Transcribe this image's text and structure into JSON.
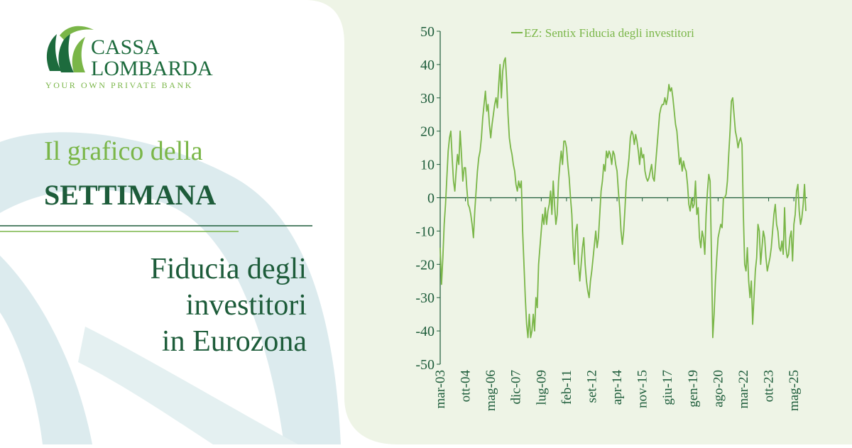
{
  "brand": {
    "name_1": "CASSA",
    "name_2": "LOMBARDA",
    "tagline": "YOUR OWN PRIVATE BANK"
  },
  "panel": {
    "kicker": "Il grafico della",
    "kicker_strong": "SETTIMANA",
    "headline": [
      "Fiducia degli",
      "investitori",
      "in Eurozona"
    ]
  },
  "chart_data": {
    "type": "line",
    "legend": "top",
    "categories": [
      "mar-03",
      null,
      null,
      null,
      null,
      null,
      null,
      null,
      null,
      null,
      null,
      null,
      null,
      null,
      null,
      null,
      null,
      null,
      null,
      "ott-04",
      null,
      null,
      null,
      null,
      null,
      null,
      null,
      null,
      null,
      null,
      null,
      null,
      null,
      null,
      null,
      null,
      null,
      null,
      "mag-06",
      null,
      null,
      null,
      null,
      null,
      null,
      null,
      null,
      null,
      null,
      null,
      null,
      null,
      null,
      null,
      null,
      null,
      null,
      "dic-07",
      null,
      null,
      null,
      null,
      null,
      null,
      null,
      null,
      null,
      null,
      null,
      null,
      null,
      null,
      null,
      null,
      null,
      null,
      "lug-09",
      null,
      null,
      null,
      null,
      null,
      null,
      null,
      null,
      null,
      null,
      null,
      null,
      null,
      null,
      null,
      null,
      null,
      null,
      "feb-11",
      null,
      null,
      null,
      null,
      null,
      null,
      null,
      null,
      null,
      null,
      null,
      null,
      null,
      null,
      null,
      null,
      null,
      null,
      "set-12",
      null,
      null,
      null,
      null,
      null,
      null,
      null,
      null,
      null,
      null,
      null,
      null,
      null,
      null,
      null,
      null,
      null,
      null,
      "apr-14",
      null,
      null,
      null,
      null,
      null,
      null,
      null,
      null,
      null,
      null,
      null,
      null,
      null,
      null,
      null,
      null,
      null,
      null,
      "nov-15",
      null,
      null,
      null,
      null,
      null,
      null,
      null,
      null,
      null,
      null,
      null,
      null,
      null,
      null,
      null,
      null,
      null,
      null,
      "giu-17",
      null,
      null,
      null,
      null,
      null,
      null,
      null,
      null,
      null,
      null,
      null,
      null,
      null,
      null,
      null,
      null,
      null,
      null,
      "gen-19",
      null,
      null,
      null,
      null,
      null,
      null,
      null,
      null,
      null,
      null,
      null,
      null,
      null,
      null,
      null,
      null,
      null,
      null,
      "ago-20",
      null,
      null,
      null,
      null,
      null,
      null,
      null,
      null,
      null,
      null,
      null,
      null,
      null,
      null,
      null,
      null,
      null,
      null,
      "mar-22",
      null,
      null,
      null,
      null,
      null,
      null,
      null,
      null,
      null,
      null,
      null,
      null,
      null,
      null,
      null,
      null,
      null,
      null,
      "ott-23",
      null,
      null,
      null,
      null,
      null,
      null,
      null,
      null,
      null,
      null,
      null,
      null,
      null,
      null,
      null,
      null,
      null,
      null,
      "mag-25",
      null,
      null,
      null,
      null,
      null,
      null,
      null,
      null,
      null
    ],
    "series": [
      {
        "name": "EZ: Sentix Fiducia degli investitori",
        "color": "#7ab648",
        "values": [
          -15,
          -26,
          -18,
          -8,
          -2,
          6,
          14,
          18,
          20,
          12,
          5,
          2,
          8,
          13,
          10,
          20,
          13,
          5,
          9,
          9,
          3,
          -2,
          -3,
          -5,
          -8,
          -12,
          -4,
          2,
          8,
          12,
          14,
          18,
          24,
          28,
          32,
          26,
          28,
          22,
          18,
          22,
          25,
          28,
          30,
          27,
          34,
          40,
          30,
          38,
          41,
          42,
          35,
          25,
          18,
          15,
          13,
          10,
          8,
          4,
          2,
          5,
          3,
          5,
          -10,
          -20,
          -30,
          -38,
          -42,
          -35,
          -42,
          -40,
          -35,
          -40,
          -30,
          -33,
          -20,
          -15,
          -10,
          -5,
          -8,
          -3,
          -8,
          -4,
          -2,
          2,
          -5,
          5,
          -2,
          -8,
          -5,
          5,
          10,
          14,
          10,
          17,
          17,
          15,
          10,
          6,
          0,
          -5,
          -15,
          -20,
          -10,
          -8,
          -20,
          -25,
          -20,
          -15,
          -12,
          -20,
          -25,
          -28,
          -30,
          -25,
          -22,
          -18,
          -14,
          -10,
          -15,
          -12,
          -5,
          2,
          5,
          10,
          8,
          14,
          12,
          14,
          13,
          10,
          14,
          13,
          10,
          8,
          2,
          -3,
          -10,
          -14,
          -10,
          -3,
          5,
          8,
          12,
          18,
          20,
          19,
          16,
          19,
          17,
          14,
          10,
          15,
          12,
          13,
          8,
          6,
          5,
          6,
          8,
          10,
          6,
          5,
          10,
          15,
          20,
          25,
          27,
          28,
          28,
          30,
          28,
          30,
          34,
          32,
          33,
          30,
          26,
          22,
          20,
          15,
          10,
          12,
          8,
          11,
          9,
          8,
          4,
          -2,
          -4,
          0,
          -3,
          -2,
          5,
          -5,
          -3,
          -12,
          -15,
          -10,
          -12,
          -17,
          -5,
          2,
          7,
          5,
          -17,
          -42,
          -35,
          -25,
          -18,
          -12,
          -10,
          -8,
          -9,
          0,
          0,
          1,
          5,
          13,
          20,
          29,
          30,
          25,
          20,
          18,
          15,
          17,
          18,
          16,
          -5,
          -20,
          -22,
          -15,
          -25,
          -30,
          -25,
          -38,
          -30,
          -22,
          -18,
          -8,
          -10,
          -20,
          -15,
          -10,
          -12,
          -18,
          -22,
          -20,
          -18,
          -15,
          -10,
          -5,
          -2,
          -8,
          -10,
          -15,
          -16,
          -13,
          -17,
          -3,
          -15,
          -18,
          -17,
          -12,
          -10,
          -19,
          -8,
          -5,
          2,
          4,
          -4,
          -8,
          -6,
          -2,
          4,
          -4
        ]
      }
    ],
    "ylim": [
      -50,
      50
    ],
    "yticks": [
      -50,
      -40,
      -30,
      -20,
      -10,
      0,
      10,
      20,
      30,
      40,
      50
    ]
  }
}
